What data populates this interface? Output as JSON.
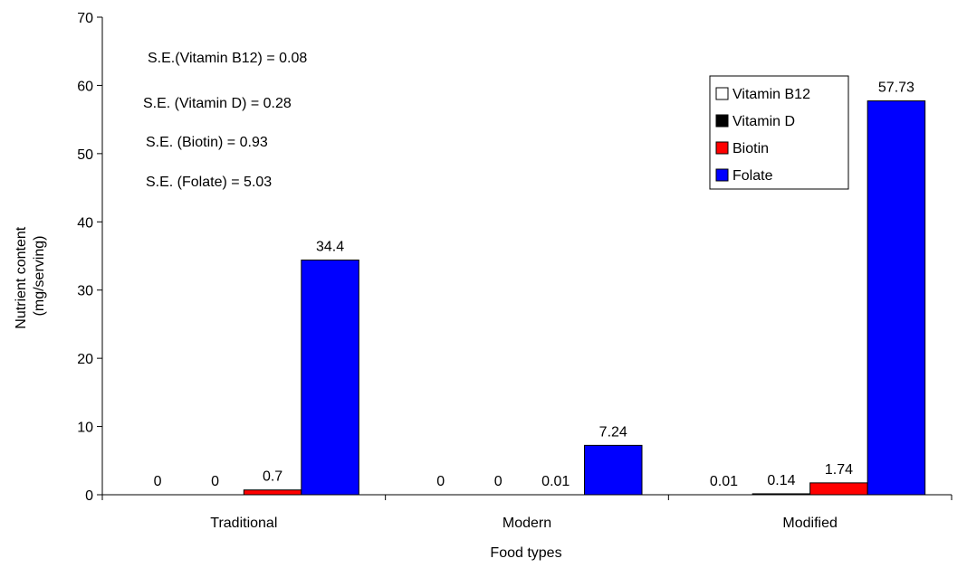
{
  "chart_data": {
    "type": "bar",
    "xlabel": "Food types",
    "ylabel": [
      "Nutrient content",
      "(mg/serving)"
    ],
    "ylim": [
      0,
      70
    ],
    "yticks": [
      0,
      10,
      20,
      30,
      40,
      50,
      60,
      70
    ],
    "grid": false,
    "legend_position": "right",
    "categories": [
      "Traditional",
      "Modern",
      "Modified"
    ],
    "series": [
      {
        "name": "Vitamin B12",
        "color": "#ffffff",
        "values": [
          0,
          0,
          0.01
        ],
        "labels": [
          "0",
          "0",
          "0.01"
        ]
      },
      {
        "name": "Vitamin D",
        "color": "#000000",
        "values": [
          0,
          0,
          0.14
        ],
        "labels": [
          "0",
          "0",
          "0.14"
        ]
      },
      {
        "name": "Biotin",
        "color": "#ff0000",
        "values": [
          0.7,
          0.01,
          1.74
        ],
        "labels": [
          "0.7",
          "0.01",
          "1.74"
        ]
      },
      {
        "name": "Folate",
        "color": "#0000ff",
        "values": [
          34.4,
          7.24,
          57.73
        ],
        "labels": [
          "34.4",
          "7.24",
          "57.73"
        ]
      }
    ],
    "annotations": [
      "S.E.(Vitamin B12) = 0.08",
      "S.E. (Vitamin D) = 0.28",
      "S.E. (Biotin) = 0.93",
      "S.E. (Folate) = 5.03"
    ]
  }
}
